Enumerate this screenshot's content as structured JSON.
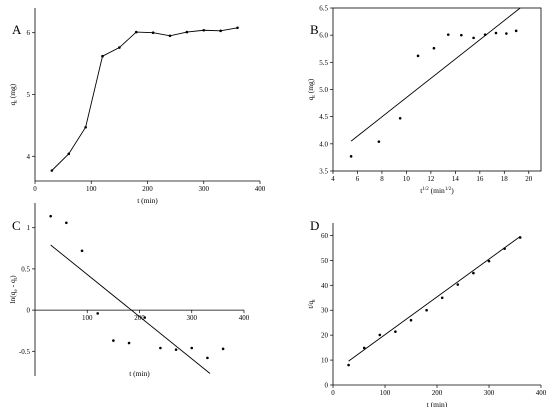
{
  "chart_data": [
    {
      "panel": "A",
      "type": "line",
      "xlabel": "t (min)",
      "ylabel_main": "q",
      "ylabel_sub": "t",
      "ylabel_tail": " (mg)",
      "xlim": [
        0,
        400
      ],
      "ylim": [
        3.6,
        6.4
      ],
      "xticks": [
        0,
        100,
        200,
        300,
        400
      ],
      "yticks": [
        4,
        5,
        6
      ],
      "markers": true,
      "x": [
        30,
        60,
        90,
        120,
        150,
        180,
        210,
        240,
        270,
        300,
        330,
        360
      ],
      "y": [
        3.77,
        4.04,
        4.47,
        5.62,
        5.76,
        6.01,
        6.0,
        5.95,
        6.01,
        6.04,
        6.03,
        6.08
      ]
    },
    {
      "panel": "B",
      "type": "scatter",
      "xlabel_main": "t",
      "xlabel_sup": "1/2",
      "xlabel_tail": " (min",
      "xlabel_sup2": "1/2",
      "xlabel_end": ")",
      "ylabel_main": "q",
      "ylabel_sub": "t",
      "ylabel_tail": " (mg)",
      "xlim": [
        4,
        21
      ],
      "ylim": [
        3.5,
        6.5
      ],
      "xticks": [
        4,
        6,
        8,
        10,
        12,
        14,
        16,
        18,
        20
      ],
      "yticks": [
        3.5,
        4.0,
        4.5,
        5.0,
        5.5,
        6.0,
        6.5
      ],
      "ytick_labels": [
        "3.5",
        "4.0",
        "4.5",
        "5.0",
        "5.5",
        "6.0",
        "6.5"
      ],
      "x": [
        5.48,
        7.75,
        9.49,
        10.95,
        12.25,
        13.42,
        14.49,
        15.49,
        16.43,
        17.32,
        18.17,
        18.97
      ],
      "y": [
        3.77,
        4.04,
        4.47,
        5.62,
        5.76,
        6.01,
        6.0,
        5.95,
        6.01,
        6.04,
        6.03,
        6.08
      ],
      "fit_line": {
        "x": [
          5.48,
          19.3
        ],
        "y": [
          4.05,
          6.5
        ]
      }
    },
    {
      "panel": "C",
      "type": "scatter",
      "xlabel": "t (min)",
      "ylabel_main": "ln(q",
      "ylabel_sub": "e",
      "ylabel_mid": " - q",
      "ylabel_sub2": "t",
      "ylabel_end": ")",
      "xlim": [
        0,
        400
      ],
      "ylim": [
        -0.8,
        1.3
      ],
      "xticks": [
        100,
        200,
        300,
        400
      ],
      "yticks": [
        -0.5,
        0,
        0.5,
        1
      ],
      "ytick_labels": [
        "-0.5",
        "0",
        "0.5",
        "1"
      ],
      "x": [
        30,
        60,
        90,
        120,
        150,
        180,
        210,
        240,
        270,
        300,
        330,
        360
      ],
      "y": [
        1.14,
        1.06,
        0.72,
        -0.04,
        -0.37,
        -0.4,
        -0.09,
        -0.46,
        -0.48,
        -0.46,
        -0.58,
        -0.47
      ],
      "fit_line": {
        "x": [
          30,
          335
        ],
        "y": [
          0.79,
          -0.77
        ]
      }
    },
    {
      "panel": "D",
      "type": "scatter",
      "xlabel": "t (min)",
      "ylabel_main": "t/q",
      "ylabel_sub": "t",
      "xlim": [
        0,
        400
      ],
      "ylim": [
        0,
        65
      ],
      "xticks": [
        0,
        100,
        200,
        300,
        400
      ],
      "yticks": [
        0,
        10,
        20,
        30,
        40,
        50,
        60
      ],
      "x": [
        30,
        60,
        90,
        120,
        150,
        180,
        210,
        240,
        270,
        300,
        330,
        360
      ],
      "y": [
        8.0,
        14.9,
        20.1,
        21.4,
        26.0,
        30.0,
        35.0,
        40.3,
        44.9,
        49.7,
        54.7,
        59.2
      ],
      "fit_line": {
        "x": [
          30,
          360
        ],
        "y": [
          9.6,
          59.6
        ]
      }
    }
  ]
}
